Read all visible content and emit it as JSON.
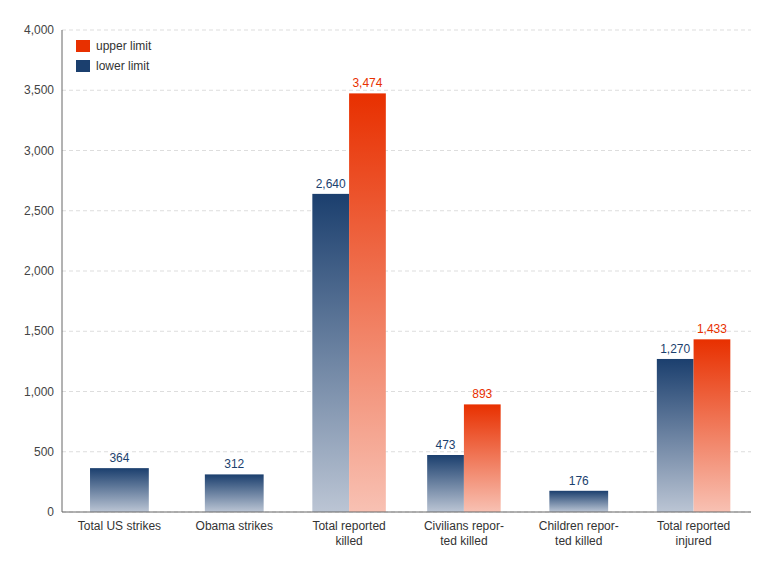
{
  "chart_data": {
    "type": "bar",
    "categories": [
      "Total US strikes",
      "Obama strikes",
      "Total reported\nkilled",
      "Civilians repor-\nted killed",
      "Children repor-\nted killed",
      "Total reported\ninjured"
    ],
    "series": [
      {
        "name": "lower limit",
        "color": "#1b3f6e",
        "values": [
          364,
          312,
          2640,
          473,
          176,
          1270
        ],
        "value_labels": [
          "364",
          "312",
          "2,640",
          "473",
          "176",
          "1,270"
        ]
      },
      {
        "name": "upper limit",
        "color": "#e83000",
        "values": [
          null,
          null,
          3474,
          893,
          null,
          1433
        ],
        "value_labels": [
          null,
          null,
          "3,474",
          "893",
          null,
          "1,433"
        ]
      }
    ],
    "ylim": [
      0,
      4000
    ],
    "yticks": [
      0,
      500,
      {
        "value": 1000,
        "label": "1,000"
      },
      {
        "value": 1500,
        "label": "1,500"
      },
      {
        "value": 2000,
        "label": "2,000"
      },
      {
        "value": 2500,
        "label": "2,500"
      },
      {
        "value": 3000,
        "label": "3,000"
      },
      {
        "value": 3500,
        "label": "3,500"
      },
      {
        "value": 4000,
        "label": "4,000"
      }
    ],
    "grid": true,
    "legend": "upper left",
    "data_labels": true
  }
}
